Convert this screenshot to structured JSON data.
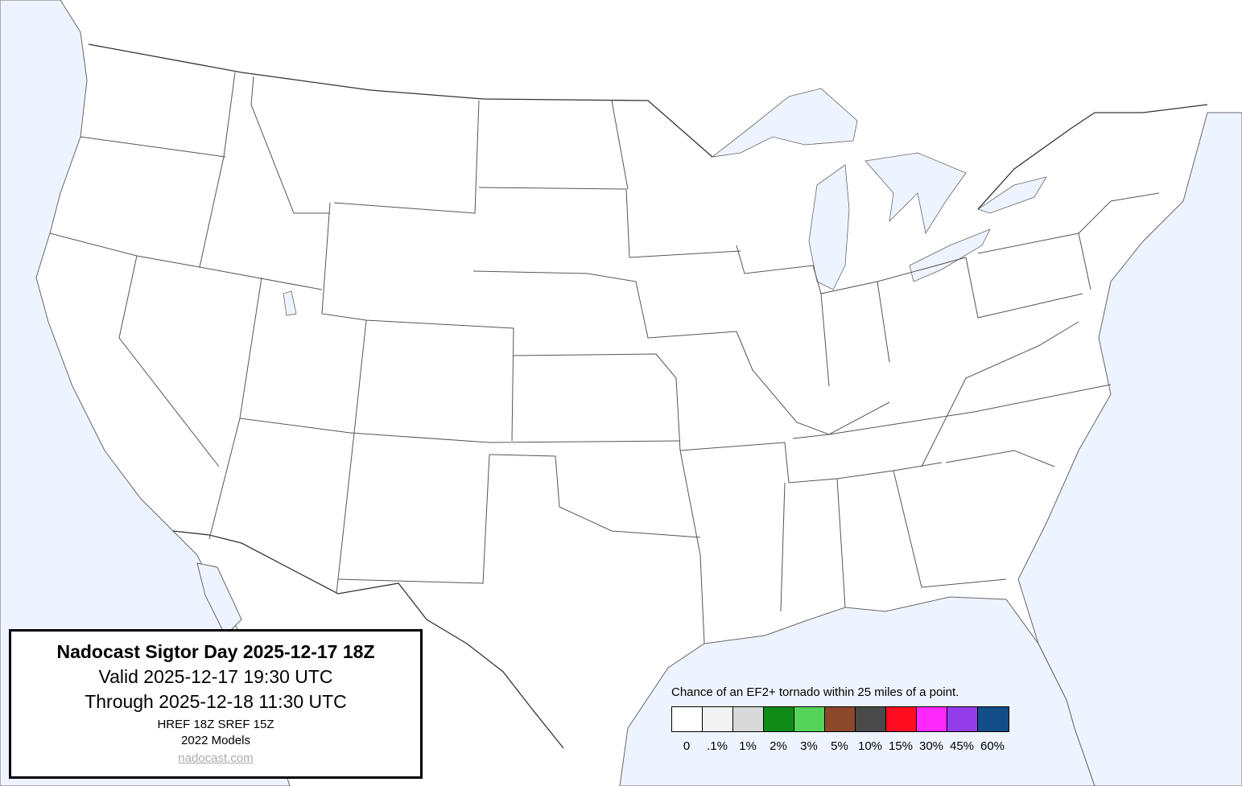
{
  "info": {
    "title": "Nadocast Sigtor Day 2025-12-17 18Z",
    "valid": "Valid 2025-12-17 19:30 UTC",
    "through": "Through 2025-12-18 11:30 UTC",
    "models_run": "HREF 18Z SREF 15Z",
    "models_version": "2022 Models",
    "link": "nadocast.com"
  },
  "legend": {
    "title": "Chance of an EF2+ tornado within 25 miles of a point.",
    "bins": [
      {
        "label": "0",
        "color": "#ffffff"
      },
      {
        "label": ".1%",
        "color": "#f2f2f2"
      },
      {
        "label": "1%",
        "color": "#d9d9d9"
      },
      {
        "label": "2%",
        "color": "#108b17"
      },
      {
        "label": "3%",
        "color": "#55d258"
      },
      {
        "label": "5%",
        "color": "#8b482b"
      },
      {
        "label": "10%",
        "color": "#4a4a4a"
      },
      {
        "label": "15%",
        "color": "#fe0c1f"
      },
      {
        "label": "30%",
        "color": "#fd28fc"
      },
      {
        "label": "45%",
        "color": "#933ce9"
      },
      {
        "label": "60%",
        "color": "#134e88"
      }
    ]
  },
  "map": {
    "water_color": "#eef4ff",
    "land_color": "#ffffff",
    "forecast_areas": []
  }
}
